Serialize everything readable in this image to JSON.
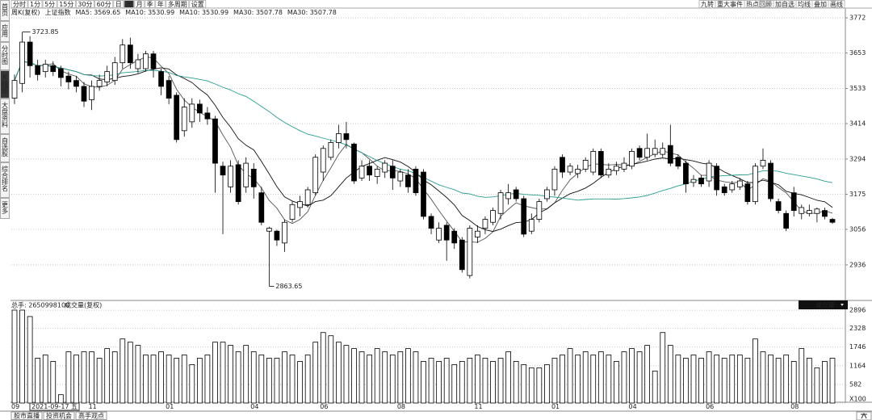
{
  "toolbar": {
    "tabs": [
      "分时",
      "1分",
      "5分",
      "15分",
      "30分",
      "60分",
      "日",
      "周",
      "月",
      "季",
      "年",
      "多周期",
      "设置"
    ],
    "selected": 7,
    "right": [
      "九转",
      "重大事件",
      "热点回顾",
      "加自选",
      "均线",
      "叠加",
      "画线"
    ]
  },
  "sidebar": {
    "items": [
      "首页",
      "应用",
      "分时图",
      "K线图",
      "大盘资料",
      "自选股",
      "综合排名",
      "更多"
    ],
    "selected": 3
  },
  "bottom_tabs": [
    "股市直播",
    "投资机会",
    "高手观点"
  ],
  "chart_data": {
    "type": "candlestick",
    "period_label": "周K(复权)",
    "title": "上证指数",
    "legend": [
      {
        "text": "MA5: 3569.65",
        "color": "#888888"
      },
      {
        "text": "MA10: 3530.99",
        "color": "#222222"
      },
      {
        "text": "MA10: 3530.99",
        "color": "#222222"
      },
      {
        "text": "MA30: 3507.78",
        "color": "#2a9d8f"
      },
      {
        "text": "MA30: 3507.78",
        "color": "#2a9d8f"
      }
    ],
    "moving_averages": [
      {
        "period": 5,
        "color": "#555555"
      },
      {
        "period": 10,
        "color": "#111111"
      },
      {
        "period": 30,
        "color": "#2a9d8f"
      }
    ],
    "cursor_date": "2021-09-17 五",
    "categories": [
      "09",
      null,
      null,
      null,
      null,
      null,
      null,
      null,
      null,
      null,
      "11",
      null,
      null,
      null,
      null,
      null,
      null,
      null,
      null,
      null,
      "01",
      null,
      null,
      null,
      null,
      null,
      null,
      null,
      null,
      null,
      null,
      "04",
      null,
      null,
      null,
      null,
      null,
      null,
      null,
      null,
      "06",
      null,
      null,
      null,
      null,
      null,
      null,
      null,
      null,
      null,
      "08",
      null,
      null,
      null,
      null,
      null,
      null,
      null,
      null,
      null,
      "11",
      null,
      null,
      null,
      null,
      null,
      null,
      null,
      null,
      null,
      "01",
      null,
      null,
      null,
      null,
      null,
      null,
      null,
      null,
      null,
      "04",
      null,
      null,
      null,
      null,
      null,
      null,
      null,
      null,
      null,
      "06",
      null,
      null,
      null,
      null,
      null,
      null,
      null,
      null,
      null,
      null,
      "08",
      null,
      null,
      null,
      null,
      null
    ],
    "candles": {
      "open": [
        3500,
        3550,
        3690,
        3610,
        3590,
        3610,
        3600,
        3575,
        3560,
        3540,
        3495,
        3540,
        3555,
        3560,
        3620,
        3680,
        3600,
        3600,
        3650,
        3590,
        3560,
        3510,
        3390,
        3420,
        3480,
        3450,
        3430,
        3270,
        3200,
        3275,
        3200,
        3260,
        3180,
        3050,
        3050,
        3010,
        3090,
        3130,
        3140,
        3180,
        3250,
        3300,
        3350,
        3380,
        3345,
        3230,
        3270,
        3235,
        3250,
        3270,
        3220,
        3240,
        3260,
        3250,
        3100,
        3020,
        3070,
        3050,
        3020,
        2900,
        3030,
        3060,
        3080,
        3110,
        3160,
        3190,
        3160,
        3050,
        3090,
        3160,
        3190,
        3300,
        3250,
        3245,
        3260,
        3250,
        3320,
        3240,
        3255,
        3260,
        3270,
        3330,
        3300,
        3310,
        3310,
        3340,
        3300,
        3280,
        3215,
        3230,
        3220,
        3270,
        3200,
        3190,
        3200,
        3210,
        3150,
        3270,
        3280,
        3150,
        3110,
        3180,
        3110,
        3110,
        3110,
        3120,
        3090
      ],
      "high": [
        3580,
        3723.85,
        3710,
        3630,
        3630,
        3625,
        3610,
        3590,
        3575,
        3555,
        3560,
        3580,
        3610,
        3640,
        3700,
        3705,
        3650,
        3660,
        3660,
        3600,
        3575,
        3520,
        3500,
        3500,
        3495,
        3470,
        3440,
        3285,
        3290,
        3290,
        3300,
        3280,
        3200,
        3065,
        3055,
        3090,
        3150,
        3170,
        3200,
        3310,
        3340,
        3360,
        3410,
        3420,
        3350,
        3290,
        3290,
        3270,
        3290,
        3290,
        3260,
        3260,
        3270,
        3260,
        3110,
        3080,
        3080,
        3060,
        3030,
        3070,
        3070,
        3100,
        3130,
        3190,
        3210,
        3200,
        3170,
        3110,
        3160,
        3200,
        3270,
        3310,
        3280,
        3275,
        3300,
        3330,
        3330,
        3280,
        3285,
        3300,
        3330,
        3340,
        3380,
        3360,
        3350,
        3410,
        3310,
        3290,
        3240,
        3240,
        3290,
        3280,
        3210,
        3220,
        3230,
        3220,
        3280,
        3330,
        3290,
        3160,
        3120,
        3200,
        3140,
        3140,
        3130,
        3130,
        3095
      ],
      "low": [
        3480,
        3520,
        3570,
        3560,
        3570,
        3575,
        3540,
        3530,
        3520,
        3470,
        3460,
        3525,
        3540,
        3545,
        3600,
        3600,
        3585,
        3590,
        3570,
        3510,
        3480,
        3350,
        3370,
        3400,
        3420,
        3410,
        3180,
        3040,
        3180,
        3140,
        3180,
        3160,
        3070,
        2863.65,
        3000,
        2980,
        3080,
        3100,
        3130,
        3170,
        3220,
        3290,
        3330,
        3330,
        3210,
        3220,
        3220,
        3210,
        3230,
        3190,
        3200,
        3180,
        3170,
        3090,
        3040,
        3010,
        2950,
        2990,
        2910,
        2890,
        3010,
        3040,
        3070,
        3090,
        3140,
        3150,
        3030,
        3040,
        3080,
        3150,
        3170,
        3230,
        3240,
        3230,
        3250,
        3240,
        3230,
        3230,
        3240,
        3250,
        3260,
        3290,
        3290,
        3300,
        3300,
        3270,
        3260,
        3180,
        3200,
        3200,
        3200,
        3170,
        3170,
        3180,
        3190,
        3140,
        3140,
        3260,
        3150,
        3110,
        3050,
        3100,
        3090,
        3100,
        3080,
        3090,
        3075
      ],
      "close": [
        3560,
        3690,
        3610,
        3580,
        3615,
        3590,
        3570,
        3555,
        3540,
        3490,
        3540,
        3560,
        3590,
        3620,
        3680,
        3620,
        3630,
        3650,
        3600,
        3540,
        3500,
        3360,
        3470,
        3480,
        3450,
        3430,
        3280,
        3240,
        3270,
        3150,
        3280,
        3200,
        3080,
        3060,
        3020,
        3080,
        3140,
        3150,
        3190,
        3300,
        3330,
        3350,
        3380,
        3360,
        3220,
        3270,
        3240,
        3260,
        3280,
        3230,
        3250,
        3200,
        3180,
        3100,
        3060,
        3060,
        3020,
        3010,
        2920,
        3060,
        3050,
        3090,
        3120,
        3180,
        3180,
        3160,
        3040,
        3090,
        3150,
        3190,
        3260,
        3250,
        3270,
        3260,
        3290,
        3320,
        3240,
        3260,
        3270,
        3280,
        3320,
        3300,
        3330,
        3330,
        3330,
        3280,
        3270,
        3210,
        3225,
        3210,
        3280,
        3190,
        3180,
        3210,
        3220,
        3150,
        3270,
        3290,
        3160,
        3120,
        3060,
        3120,
        3130,
        3120,
        3125,
        3100,
        3080
      ]
    },
    "ylim": [
      2821,
      3805
    ],
    "yticks": [
      2936,
      3056,
      3175,
      3294,
      3414,
      3533,
      3653,
      3772
    ],
    "grid": true,
    "up_color": "#ffffff",
    "down_color": "#000000",
    "volume": {
      "header": "总手: 2650998100",
      "name": "成交量(复权)",
      "selector": "成交量",
      "values": [
        2900,
        2900,
        2700,
        1400,
        1500,
        1300,
        260,
        1600,
        1500,
        1600,
        1600,
        1400,
        1700,
        1600,
        2000,
        1900,
        1800,
        1500,
        1500,
        1600,
        1500,
        1400,
        1500,
        1200,
        1400,
        1500,
        1900,
        1900,
        1800,
        1600,
        1800,
        1600,
        1500,
        1400,
        1400,
        1600,
        1500,
        1300,
        1500,
        1900,
        2200,
        2100,
        1900,
        1800,
        1700,
        1600,
        1500,
        1700,
        1600,
        1500,
        1600,
        1700,
        1600,
        1300,
        1400,
        1300,
        1400,
        1200,
        1300,
        1400,
        1500,
        1400,
        1300,
        1400,
        1600,
        1300,
        1200,
        1100,
        1100,
        1200,
        1400,
        1500,
        1700,
        1500,
        1600,
        1500,
        1600,
        1500,
        1300,
        1600,
        1700,
        1600,
        1800,
        1000,
        2200,
        1800,
        1500,
        1400,
        1500,
        1400,
        1600,
        1500,
        1400,
        1500,
        1500,
        1400,
        2000,
        1600,
        1500,
        1400,
        1500,
        1300,
        1700,
        1400,
        1100,
        1300,
        1400
      ],
      "ylim": [
        0,
        3000
      ],
      "yticks": [
        {
          "value": 0,
          "label": "X100"
        },
        582,
        1164,
        1746,
        2328,
        2896
      ],
      "color": "#ffffff"
    }
  }
}
